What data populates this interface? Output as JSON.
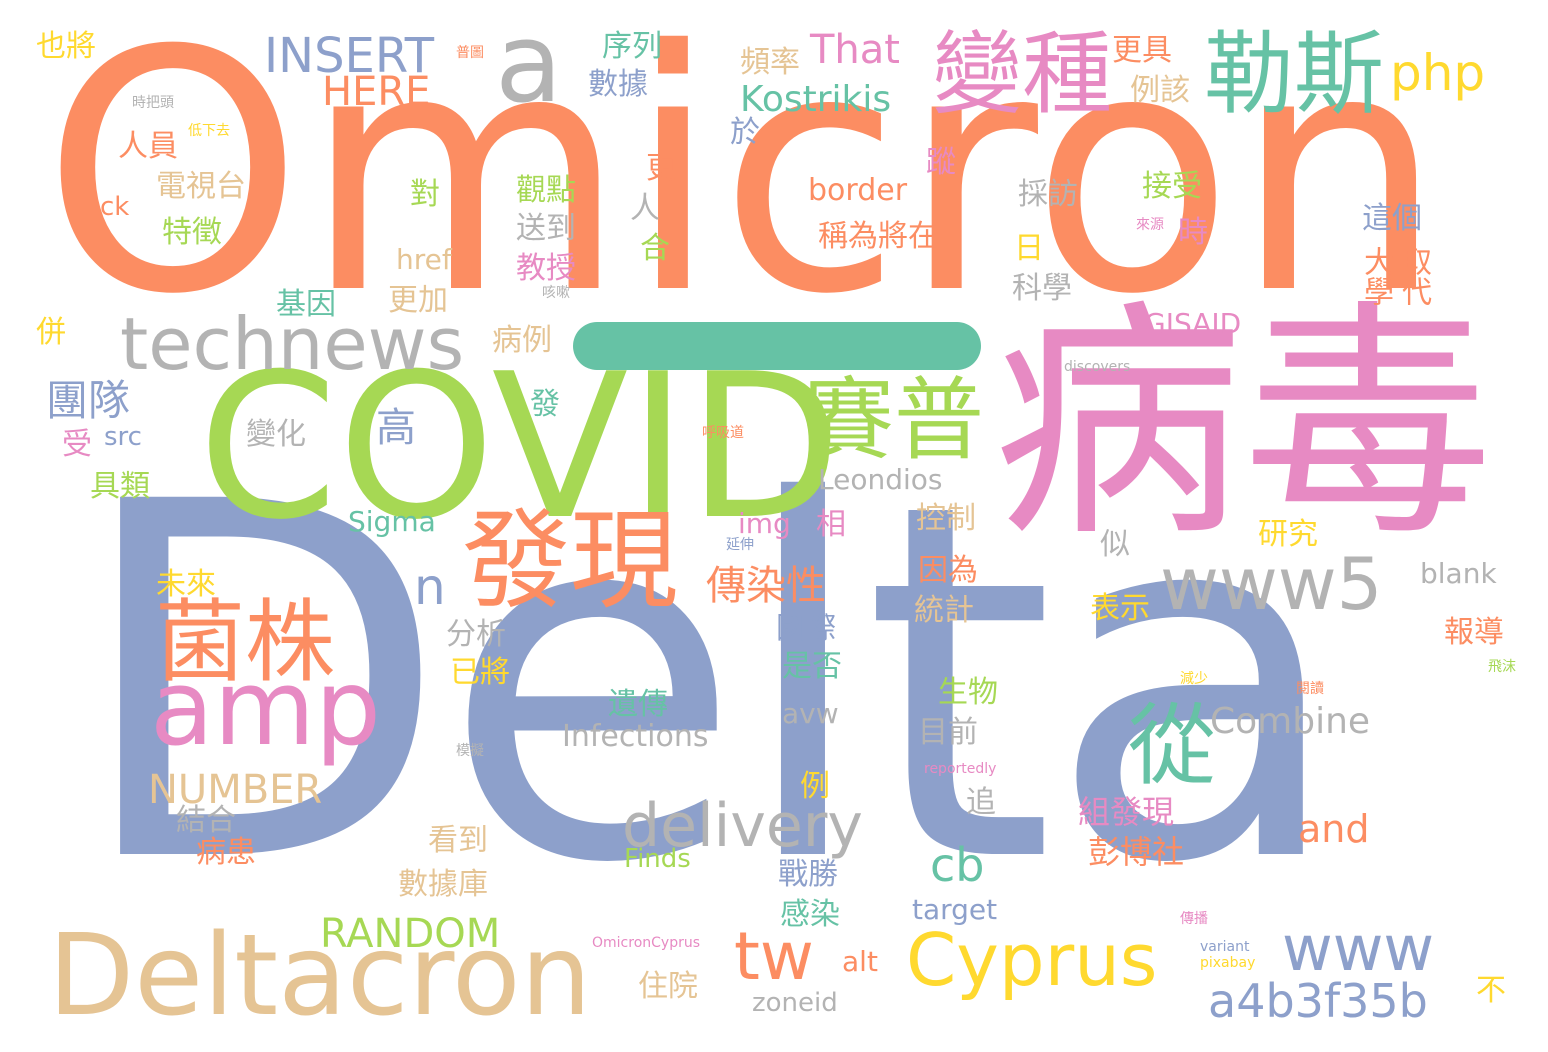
{
  "palette": {
    "orange": "#fc8d62",
    "blue": "#8da0cb",
    "pink": "#e78ac3",
    "green": "#a6d854",
    "yellow": "#ffd92f",
    "tan": "#e5c494",
    "gray": "#b3b3b3",
    "teal": "#66c2a5"
  },
  "words": [
    {
      "text": "Omicron",
      "color": "orange",
      "weight": 100
    },
    {
      "text": "Delta",
      "color": "blue",
      "weight": 98
    },
    {
      "text": "病毒",
      "color": "pink",
      "weight": 70
    },
    {
      "text": "COVID",
      "color": "green",
      "weight": 60
    },
    {
      "text": "Deltacron",
      "color": "tan",
      "weight": 40
    },
    {
      "text": "發現",
      "color": "orange",
      "weight": 32
    },
    {
      "text": "菌株",
      "color": "orange",
      "weight": 30
    },
    {
      "text": "amp",
      "color": "pink",
      "weight": 30
    },
    {
      "text": "賽普",
      "color": "green",
      "weight": 28
    },
    {
      "text": "變種",
      "color": "pink",
      "weight": 27
    },
    {
      "text": "勒斯",
      "color": "teal",
      "weight": 27
    },
    {
      "text": "a",
      "color": "gray",
      "weight": 27
    },
    {
      "text": "technews",
      "color": "gray",
      "weight": 25
    },
    {
      "text": "從",
      "color": "teal",
      "weight": 24
    },
    {
      "text": "www5",
      "color": "gray",
      "weight": 22
    },
    {
      "text": "Cyprus",
      "color": "yellow",
      "weight": 24
    },
    {
      "text": "www",
      "color": "blue",
      "weight": 22
    },
    {
      "text": "delivery",
      "color": "gray",
      "weight": 20
    },
    {
      "text": "tw",
      "color": "orange",
      "weight": 20
    },
    {
      "text": "a4b3f35b",
      "color": "blue",
      "weight": 17
    },
    {
      "text": "INSERT",
      "color": "blue",
      "weight": 15
    },
    {
      "text": "php",
      "color": "yellow",
      "weight": 16
    },
    {
      "text": "n",
      "color": "blue",
      "weight": 15
    },
    {
      "text": "cb",
      "color": "teal",
      "weight": 15
    },
    {
      "text": "NUMBER",
      "color": "tan",
      "weight": 14
    },
    {
      "text": "RANDOM",
      "color": "green",
      "weight": 14
    },
    {
      "text": "HERE",
      "color": "orange",
      "weight": 14
    },
    {
      "text": "That",
      "color": "pink",
      "weight": 13
    },
    {
      "text": "Kostrikis",
      "color": "teal",
      "weight": 12
    },
    {
      "text": "傳染性",
      "color": "orange",
      "weight": 12
    },
    {
      "text": "Combine",
      "color": "gray",
      "weight": 12
    },
    {
      "text": "團隊",
      "color": "blue",
      "weight": 12
    },
    {
      "text": "高",
      "color": "blue",
      "weight": 12
    },
    {
      "text": "and",
      "color": "orange",
      "weight": 12
    },
    {
      "text": "Infections",
      "color": "gray",
      "weight": 10
    },
    {
      "text": "Leondios",
      "color": "gray",
      "weight": 10
    },
    {
      "text": "GISAID",
      "color": "pink",
      "weight": 10
    },
    {
      "text": "Sigma",
      "color": "teal",
      "weight": 9
    },
    {
      "text": "border",
      "color": "orange",
      "weight": 9
    },
    {
      "text": "target",
      "color": "blue",
      "weight": 9
    },
    {
      "text": "href",
      "color": "tan",
      "weight": 9
    },
    {
      "text": "img",
      "color": "pink",
      "weight": 9
    },
    {
      "text": "src",
      "color": "blue",
      "weight": 8
    },
    {
      "text": "alt",
      "color": "orange",
      "weight": 8
    },
    {
      "text": "avw",
      "color": "gray",
      "weight": 8
    },
    {
      "text": "blank",
      "color": "gray",
      "weight": 8
    },
    {
      "text": "Finds",
      "color": "green",
      "weight": 8
    },
    {
      "text": "zoneid",
      "color": "gray",
      "weight": 8
    },
    {
      "text": "ck",
      "color": "orange",
      "weight": 8
    },
    {
      "text": "組發現",
      "color": "pink",
      "weight": 9
    },
    {
      "text": "彭博社",
      "color": "orange",
      "weight": 9
    },
    {
      "text": "序列",
      "color": "teal",
      "weight": 8
    },
    {
      "text": "數據",
      "color": "blue",
      "weight": 8
    },
    {
      "text": "頻率",
      "color": "tan",
      "weight": 8
    },
    {
      "text": "更具",
      "color": "orange",
      "weight": 8
    },
    {
      "text": "例該",
      "color": "tan",
      "weight": 8
    },
    {
      "text": "人員",
      "color": "orange",
      "weight": 8
    },
    {
      "text": "電視台",
      "color": "tan",
      "weight": 8
    },
    {
      "text": "特徵",
      "color": "green",
      "weight": 8
    },
    {
      "text": "觀點",
      "color": "green",
      "weight": 8
    },
    {
      "text": "送到",
      "color": "gray",
      "weight": 8
    },
    {
      "text": "教授",
      "color": "pink",
      "weight": 8
    },
    {
      "text": "接受",
      "color": "green",
      "weight": 8
    },
    {
      "text": "採訪",
      "color": "gray",
      "weight": 8
    },
    {
      "text": "稱為將在",
      "color": "orange",
      "weight": 8
    },
    {
      "text": "這個",
      "color": "blue",
      "weight": 8
    },
    {
      "text": "大學",
      "color": "orange",
      "weight": 8
    },
    {
      "text": "取代",
      "color": "orange",
      "weight": 8
    },
    {
      "text": "基因",
      "color": "teal",
      "weight": 8
    },
    {
      "text": "更加",
      "color": "tan",
      "weight": 8
    },
    {
      "text": "科學",
      "color": "gray",
      "weight": 8
    },
    {
      "text": "病例",
      "color": "tan",
      "weight": 8
    },
    {
      "text": "變化",
      "color": "gray",
      "weight": 8
    },
    {
      "text": "具類",
      "color": "green",
      "weight": 8
    },
    {
      "text": "控制",
      "color": "tan",
      "weight": 8
    },
    {
      "text": "因為",
      "color": "orange",
      "weight": 8
    },
    {
      "text": "統計",
      "color": "tan",
      "weight": 8
    },
    {
      "text": "國際",
      "color": "blue",
      "weight": 8
    },
    {
      "text": "是否",
      "color": "teal",
      "weight": 8
    },
    {
      "text": "未來",
      "color": "yellow",
      "weight": 8
    },
    {
      "text": "分析",
      "color": "gray",
      "weight": 8
    },
    {
      "text": "已將",
      "color": "yellow",
      "weight": 8
    },
    {
      "text": "研究",
      "color": "yellow",
      "weight": 8
    },
    {
      "text": "表示",
      "color": "yellow",
      "weight": 8
    },
    {
      "text": "報導",
      "color": "orange",
      "weight": 8
    },
    {
      "text": "遺傳",
      "color": "teal",
      "weight": 8
    },
    {
      "text": "生物",
      "color": "green",
      "weight": 8
    },
    {
      "text": "目前",
      "color": "gray",
      "weight": 8
    },
    {
      "text": "結合",
      "color": "gray",
      "weight": 8
    },
    {
      "text": "病患",
      "color": "orange",
      "weight": 8
    },
    {
      "text": "看到",
      "color": "tan",
      "weight": 8
    },
    {
      "text": "數據庫",
      "color": "tan",
      "weight": 8
    },
    {
      "text": "戰勝",
      "color": "blue",
      "weight": 8
    },
    {
      "text": "感染",
      "color": "teal",
      "weight": 8
    },
    {
      "text": "住院",
      "color": "tan",
      "weight": 7
    },
    {
      "text": "也將",
      "color": "yellow",
      "weight": 7
    },
    {
      "text": "於",
      "color": "blue",
      "weight": 7
    },
    {
      "text": "對",
      "color": "green",
      "weight": 7
    },
    {
      "text": "日",
      "color": "yellow",
      "weight": 7
    },
    {
      "text": "時",
      "color": "pink",
      "weight": 7
    },
    {
      "text": "併",
      "color": "yellow",
      "weight": 7
    },
    {
      "text": "受",
      "color": "pink",
      "weight": 7
    },
    {
      "text": "相",
      "color": "pink",
      "weight": 7
    },
    {
      "text": "例",
      "color": "yellow",
      "weight": 7
    },
    {
      "text": "追",
      "color": "gray",
      "weight": 7
    },
    {
      "text": "似",
      "color": "gray",
      "weight": 7
    },
    {
      "text": "發",
      "color": "teal",
      "weight": 7
    },
    {
      "text": "更",
      "color": "orange",
      "weight": 7
    },
    {
      "text": "人",
      "color": "gray",
      "weight": 7
    },
    {
      "text": "合",
      "color": "green",
      "weight": 7
    },
    {
      "text": "蹤",
      "color": "pink",
      "weight": 7
    },
    {
      "text": "不",
      "color": "yellow",
      "weight": 7
    },
    {
      "text": "時把頭",
      "color": "gray",
      "weight": 4
    },
    {
      "text": "低下去",
      "color": "yellow",
      "weight": 4
    },
    {
      "text": "普圖",
      "color": "orange",
      "weight": 4
    },
    {
      "text": "來源",
      "color": "pink",
      "weight": 4
    },
    {
      "text": "咳嗽",
      "color": "gray",
      "weight": 4
    },
    {
      "text": "discovers",
      "color": "gray",
      "weight": 4
    },
    {
      "text": "呼吸道",
      "color": "orange",
      "weight": 4
    },
    {
      "text": "延伸",
      "color": "blue",
      "weight": 4
    },
    {
      "text": "模擬",
      "color": "gray",
      "weight": 4
    },
    {
      "text": "reportedly",
      "color": "pink",
      "weight": 4
    },
    {
      "text": "減少",
      "color": "yellow",
      "weight": 4
    },
    {
      "text": "閱讀",
      "color": "orange",
      "weight": 4
    },
    {
      "text": "飛沫",
      "color": "green",
      "weight": 4
    },
    {
      "text": "傳播",
      "color": "pink",
      "weight": 4
    },
    {
      "text": "OmicronCyprus",
      "color": "pink",
      "weight": 4
    },
    {
      "text": "variant",
      "color": "blue",
      "weight": 4
    },
    {
      "text": "pixabay",
      "color": "yellow",
      "weight": 4
    }
  ]
}
